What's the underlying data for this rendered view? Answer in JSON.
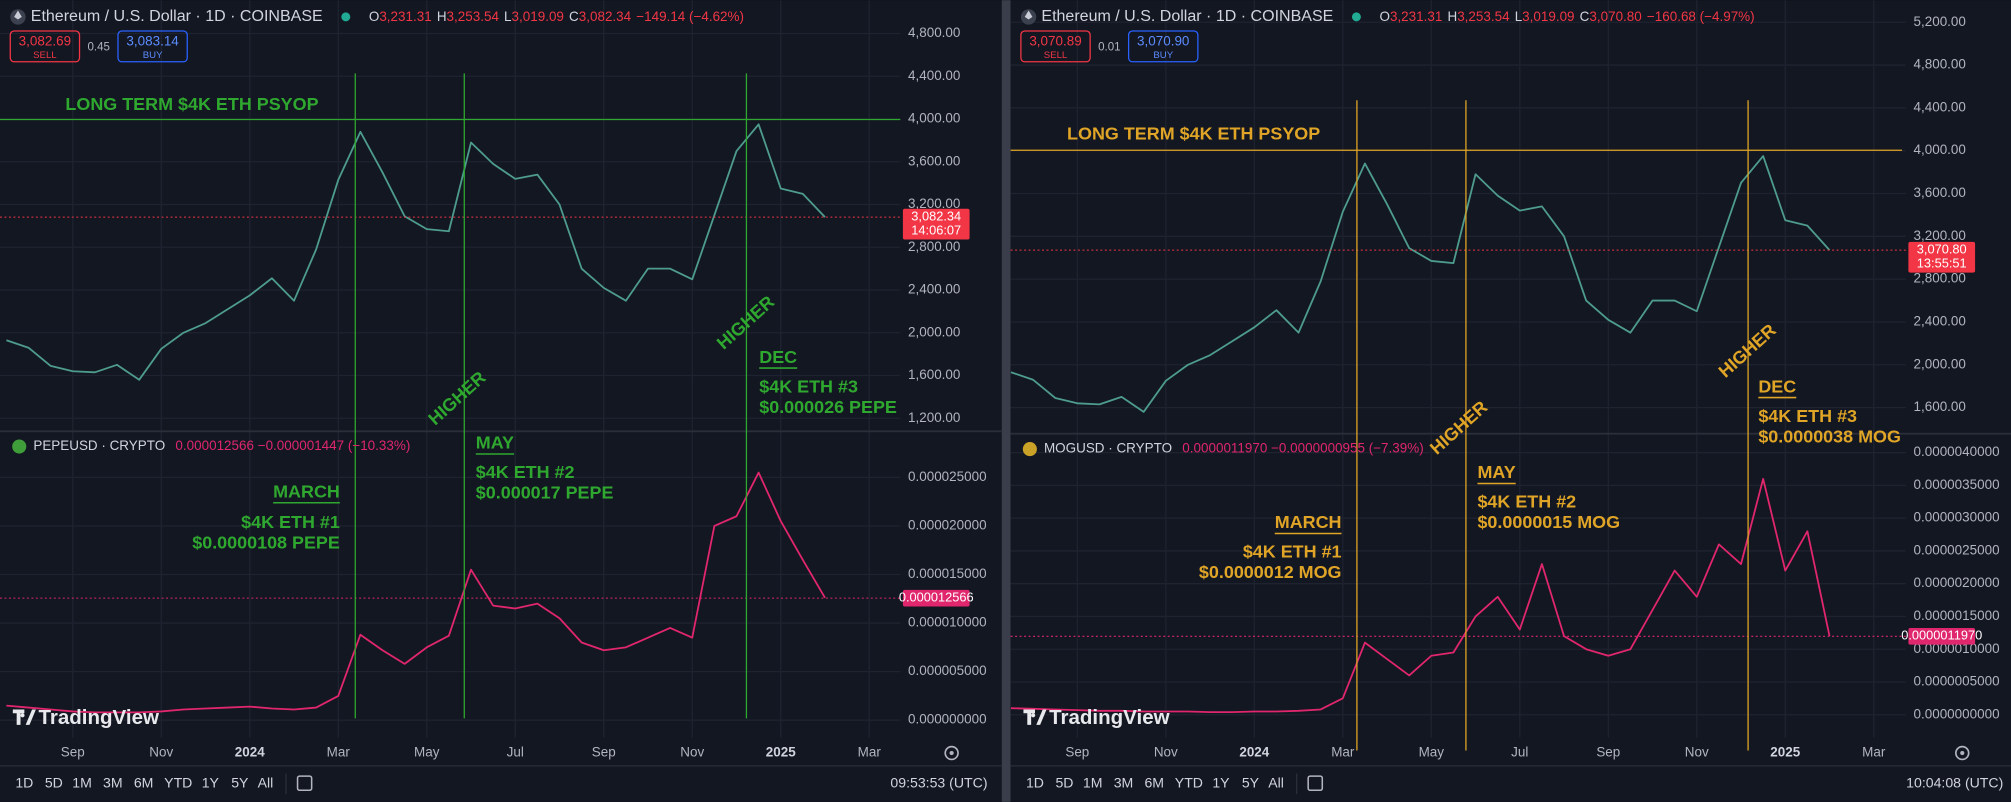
{
  "panels": [
    {
      "accent": "#2fa82f",
      "ohlc": [
        {
          "k": "O",
          "v": "3,231.31"
        },
        {
          "k": "H",
          "v": "3,253.54"
        },
        {
          "k": "L",
          "v": "3,019.09"
        },
        {
          "k": "C",
          "v": "3,082.34"
        }
      ],
      "change": "−149.14 (−4.62%)",
      "sell": {
        "price": "3,082.69",
        "label": "SELL"
      },
      "spread": "0.45",
      "buy": {
        "price": "3,083.14",
        "label": "BUY"
      },
      "sub_quote": "0.000012566 −0.000001447 (−10.33%)",
      "logo": "TradingView",
      "toolbar": [
        "1D",
        "5D",
        "1M",
        "3M",
        "6M",
        "YTD",
        "1Y",
        "5Y",
        "All"
      ],
      "clock": "09:53:53 (UTC)",
      "annotations": [
        "LONG TERM $4K ETH PSYOP",
        "HIGHER",
        "HIGHER",
        "MARCH",
        "$4K ETH #1",
        "$0.0000108 PEPE",
        "MAY",
        "$4K ETH #2",
        "$0.000017 PEPE",
        "DEC",
        "$4K ETH #3",
        "$0.000026 PEPE"
      ]
    },
    {
      "accent": "#e0a526",
      "ohlc": [
        {
          "k": "O",
          "v": "3,231.31"
        },
        {
          "k": "H",
          "v": "3,253.54"
        },
        {
          "k": "L",
          "v": "3,019.09"
        },
        {
          "k": "C",
          "v": "3,070.80"
        }
      ],
      "change": "−160.68 (−4.97%)",
      "sell": {
        "price": "3,070.89",
        "label": "SELL"
      },
      "spread": "0.01",
      "buy": {
        "price": "3,070.90",
        "label": "BUY"
      },
      "sub_quote": "0.0000011970 −0.0000000955 (−7.39%)",
      "logo": "TradingView",
      "toolbar": [
        "1D",
        "5D",
        "1M",
        "3M",
        "6M",
        "YTD",
        "1Y",
        "5Y",
        "All"
      ],
      "clock": "10:04:08 (UTC)",
      "annotations": [
        "LONG TERM $4K ETH PSYOP",
        "HIGHER",
        "HIGHER",
        "MARCH",
        "$4K ETH #1",
        "$0.0000012 MOG",
        "MAY",
        "$4K ETH #2",
        "$0.0000015 MOG",
        "DEC",
        "$4K ETH #3",
        "$0.0000038 MOG"
      ]
    }
  ],
  "chart_data": [
    {
      "type": "line",
      "grid": true,
      "categories": [
        null,
        null,
        null,
        "Sep",
        null,
        null,
        null,
        "Nov",
        null,
        null,
        null,
        "2024",
        null,
        null,
        null,
        "Mar",
        null,
        null,
        null,
        "May",
        null,
        null,
        null,
        "Jul",
        null,
        null,
        null,
        "Sep",
        null,
        null,
        null,
        "Nov",
        null,
        null,
        null,
        "2025",
        null,
        null,
        null,
        "Mar",
        null
      ],
      "ylim": [
        1100,
        5000
      ],
      "yticks": [
        {
          "value": 1200,
          "label": "1,200.00"
        },
        {
          "value": 1600,
          "label": "1,600.00"
        },
        {
          "value": 2000,
          "label": "2,000.00"
        },
        {
          "value": 2400,
          "label": "2,400.00"
        },
        {
          "value": 2800,
          "label": "2,800.00"
        },
        {
          "value": 3200,
          "label": "3,200.00"
        },
        {
          "value": 3600,
          "label": "3,600.00"
        },
        {
          "value": 4000,
          "label": "4,000.00"
        },
        {
          "value": 4400,
          "label": "4,400.00"
        },
        {
          "value": 4800,
          "label": "4,800.00"
        }
      ],
      "y2lim": [
        -1.8e-06,
        2.95e-05
      ],
      "y2ticks": [
        {
          "value": 0,
          "label": "0.000000000"
        },
        {
          "value": 5e-06,
          "label": "0.000005000"
        },
        {
          "value": 1e-05,
          "label": "0.000010000"
        },
        {
          "value": 1.5e-05,
          "label": "0.000015000"
        },
        {
          "value": 2e-05,
          "label": "0.000020000"
        },
        {
          "value": 2.5e-05,
          "label": "0.000025000"
        }
      ],
      "series": [
        {
          "name": "Ethereum / U.S. Dollar · 1D · COINBASE",
          "color": "#4e9c8d",
          "values": [
            1930,
            1860,
            1690,
            1640,
            1630,
            1700,
            1560,
            1850,
            2000,
            2090,
            2220,
            2350,
            2510,
            2300,
            2780,
            3430,
            3880,
            3500,
            3090,
            2970,
            2950,
            3780,
            3580,
            3440,
            3480,
            3200,
            2600,
            2420,
            2300,
            2600,
            2600,
            2500,
            3100,
            3700,
            3950,
            3350,
            3300,
            3082,
            null,
            null,
            null
          ],
          "price_label": {
            "value": 3082.34,
            "label": "3,082.34"
          },
          "countdown": "14:06:07"
        },
        {
          "name": "PEPEUSD · CRYPTO",
          "color": "#e0266c",
          "axis": "y2",
          "values": [
            1.5e-06,
            1.3e-06,
            1.1e-06,
            9e-07,
            8e-07,
            8e-07,
            8e-07,
            9e-07,
            1.1e-06,
            1.2e-06,
            1.3e-06,
            1.4e-06,
            1.2e-06,
            1.1e-06,
            1.3e-06,
            2.5e-06,
            8.8e-06,
            7.2e-06,
            5.8e-06,
            7.5e-06,
            8.7e-06,
            1.55e-05,
            1.18e-05,
            1.15e-05,
            1.2e-05,
            1.05e-05,
            8e-06,
            7.2e-06,
            7.5e-06,
            8.5e-06,
            9.5e-06,
            8.5e-06,
            2e-05,
            2.1e-05,
            2.55e-05,
            2.05e-05,
            1.65e-05,
            1.26e-05,
            null,
            null,
            null
          ],
          "price_label": {
            "value": 1.2566e-05,
            "label": "0.000012566"
          }
        }
      ]
    },
    {
      "type": "line",
      "grid": true,
      "categories": [
        null,
        null,
        null,
        "Sep",
        null,
        null,
        null,
        "Nov",
        null,
        null,
        null,
        "2024",
        null,
        null,
        null,
        "Mar",
        null,
        null,
        null,
        "May",
        null,
        null,
        null,
        "Jul",
        null,
        null,
        null,
        "Sep",
        null,
        null,
        null,
        "Nov",
        null,
        null,
        null,
        "2025",
        null,
        null,
        null,
        "Mar",
        null
      ],
      "ylim": [
        1380,
        5310
      ],
      "yticks": [
        {
          "value": 1600,
          "label": "1,600.00"
        },
        {
          "value": 2000,
          "label": "2,000.00"
        },
        {
          "value": 2400,
          "label": "2,400.00"
        },
        {
          "value": 2800,
          "label": "2,800.00"
        },
        {
          "value": 3200,
          "label": "3,200.00"
        },
        {
          "value": 3600,
          "label": "3,600.00"
        },
        {
          "value": 4000,
          "label": "4,000.00"
        },
        {
          "value": 4400,
          "label": "4,400.00"
        },
        {
          "value": 4800,
          "label": "4,800.00"
        },
        {
          "value": 5200,
          "label": "5,200.00"
        }
      ],
      "y2lim": [
        -3.5e-07,
        4.25e-06
      ],
      "y2ticks": [
        {
          "value": 0,
          "label": "0.0000000000"
        },
        {
          "value": 5e-07,
          "label": "0.0000005000"
        },
        {
          "value": 1e-06,
          "label": "0.0000010000"
        },
        {
          "value": 1.5e-06,
          "label": "0.0000015000"
        },
        {
          "value": 2e-06,
          "label": "0.0000020000"
        },
        {
          "value": 2.5e-06,
          "label": "0.0000025000"
        },
        {
          "value": 3e-06,
          "label": "0.0000030000"
        },
        {
          "value": 3.5e-06,
          "label": "0.0000035000"
        },
        {
          "value": 4e-06,
          "label": "0.0000040000"
        }
      ],
      "series": [
        {
          "name": "Ethereum / U.S. Dollar · 1D · COINBASE",
          "color": "#4e9c8d",
          "values": [
            1930,
            1860,
            1690,
            1640,
            1630,
            1700,
            1560,
            1850,
            2000,
            2090,
            2220,
            2350,
            2510,
            2300,
            2780,
            3430,
            3880,
            3500,
            3090,
            2970,
            2950,
            3780,
            3580,
            3440,
            3480,
            3200,
            2600,
            2420,
            2300,
            2600,
            2600,
            2500,
            3100,
            3700,
            3950,
            3350,
            3300,
            3071,
            null,
            null,
            null
          ],
          "price_label": {
            "value": 3070.8,
            "label": "3,070.80"
          },
          "countdown": "13:55:51"
        },
        {
          "name": "MOGUSD · CRYPTO",
          "color": "#e0266c",
          "axis": "y2",
          "values": [
            1e-07,
            9e-08,
            8e-08,
            7e-08,
            6e-08,
            6e-08,
            5e-08,
            5e-08,
            5e-08,
            4e-08,
            4e-08,
            5e-08,
            5e-08,
            6e-08,
            8e-08,
            2.5e-07,
            1.1e-06,
            8.5e-07,
            6e-07,
            9e-07,
            9.5e-07,
            1.5e-06,
            1.8e-06,
            1.3e-06,
            2.3e-06,
            1.2e-06,
            1e-06,
            9e-07,
            1e-06,
            1.6e-06,
            2.2e-06,
            1.8e-06,
            2.6e-06,
            2.3e-06,
            3.6e-06,
            2.2e-06,
            2.8e-06,
            1.2e-06,
            null,
            null,
            null
          ],
          "price_label": {
            "value": 1.197e-06,
            "label": "0.0000011970"
          }
        }
      ]
    }
  ]
}
